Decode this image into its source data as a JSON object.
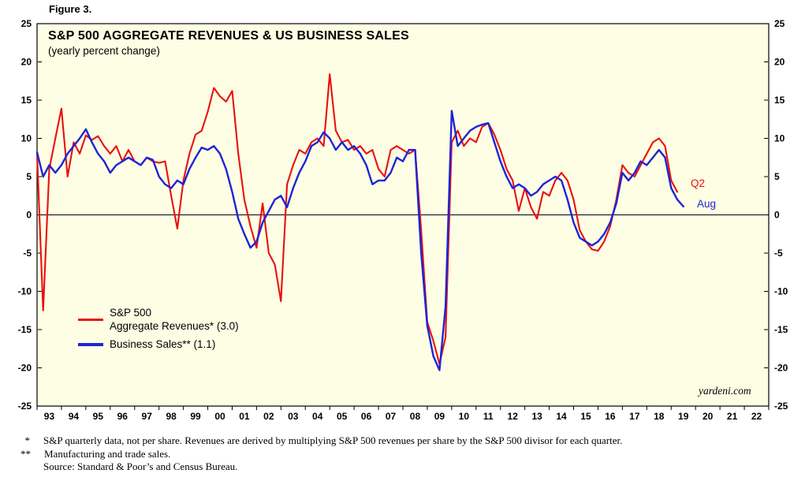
{
  "figure_label": "Figure 3.",
  "chart_data": {
    "type": "line",
    "title": "S&P 500 AGGREGATE REVENUES & US BUSINESS SALES",
    "subtitle": "(yearly percent change)",
    "ylabel": "yearly percent change",
    "xlim": [
      1993,
      2023
    ],
    "ylim": [
      -25,
      25
    ],
    "yticks": [
      -25,
      -20,
      -15,
      -10,
      -5,
      0,
      5,
      10,
      15,
      20,
      25
    ],
    "x_tick_start_year": 1993,
    "x_tick_labels": [
      "93",
      "94",
      "95",
      "96",
      "97",
      "98",
      "99",
      "00",
      "01",
      "02",
      "03",
      "04",
      "05",
      "06",
      "07",
      "08",
      "09",
      "10",
      "11",
      "12",
      "13",
      "14",
      "15",
      "16",
      "17",
      "18",
      "19",
      "20",
      "21",
      "22"
    ],
    "grid": false,
    "plot_background": "#fefee4",
    "legend_position": "inside-lower-left",
    "zero_line": true,
    "series": [
      {
        "name": "S&P 500 Aggregate Revenues* (3.0)",
        "color": "#e81010",
        "stroke_width": 2.1,
        "x_start": 1993.0,
        "x_step": 0.25,
        "values": [
          8.0,
          -12.5,
          6.0,
          10.0,
          13.9,
          5.0,
          9.5,
          8.0,
          10.4,
          9.8,
          10.3,
          9.0,
          8.0,
          9.0,
          7.0,
          8.5,
          7.0,
          6.5,
          7.5,
          7.0,
          6.8,
          7.0,
          2.5,
          -1.8,
          4.5,
          8.0,
          10.5,
          11.0,
          13.5,
          16.6,
          15.5,
          14.8,
          16.2,
          8.0,
          2.0,
          -1.5,
          -4.3,
          1.5,
          -5.0,
          -6.5,
          -11.3,
          4.0,
          6.5,
          8.5,
          8.0,
          9.5,
          10.0,
          9.0,
          18.4,
          11.0,
          9.5,
          9.8,
          8.5,
          9.0,
          8.0,
          8.5,
          6.0,
          5.0,
          8.5,
          9.0,
          8.5,
          8.0,
          8.5,
          -2.0,
          -14.0,
          -16.5,
          -19.5,
          -16.0,
          9.5,
          11.0,
          9.0,
          10.0,
          9.5,
          11.5,
          12.0,
          10.5,
          8.5,
          6.0,
          4.5,
          0.5,
          3.5,
          1.0,
          -0.5,
          3.0,
          2.5,
          4.5,
          5.5,
          4.5,
          2.0,
          -2.0,
          -3.5,
          -4.5,
          -4.7,
          -3.5,
          -1.5,
          2.0,
          6.5,
          5.5,
          5.0,
          6.5,
          8.0,
          9.5,
          10.0,
          9.0,
          4.5,
          3.0
        ]
      },
      {
        "name": "Business Sales** (1.1)",
        "color": "#1c24d8",
        "stroke_width": 2.4,
        "x_start": 1993.0,
        "x_step": 0.25,
        "values": [
          8.2,
          5.0,
          6.5,
          5.5,
          6.5,
          8.0,
          9.0,
          10.0,
          11.2,
          9.5,
          8.0,
          7.0,
          5.5,
          6.5,
          7.0,
          7.5,
          7.0,
          6.5,
          7.5,
          7.2,
          5.0,
          4.0,
          3.5,
          4.5,
          4.0,
          6.0,
          7.5,
          8.8,
          8.5,
          9.0,
          8.0,
          6.0,
          3.0,
          -0.5,
          -2.5,
          -4.3,
          -3.5,
          -1.0,
          0.5,
          2.0,
          2.5,
          1.0,
          3.5,
          5.5,
          7.0,
          9.0,
          9.5,
          10.8,
          10.0,
          8.5,
          9.5,
          8.5,
          9.0,
          8.0,
          6.5,
          4.0,
          4.5,
          4.5,
          5.5,
          7.5,
          7.0,
          8.5,
          8.5,
          -5.0,
          -14.5,
          -18.5,
          -20.3,
          -12.0,
          13.6,
          9.0,
          10.0,
          11.0,
          11.5,
          11.8,
          12.0,
          9.5,
          7.0,
          5.0,
          3.5,
          4.0,
          3.5,
          2.5,
          3.0,
          4.0,
          4.5,
          5.0,
          4.5,
          2.0,
          -1.0,
          -3.0,
          -3.5,
          -4.0,
          -3.5,
          -2.5,
          -1.0,
          1.5,
          5.5,
          4.5,
          5.5,
          7.0,
          6.5,
          7.5,
          8.5,
          7.5,
          3.5,
          2.0,
          1.1
        ]
      }
    ],
    "end_labels": [
      {
        "text": "Q2",
        "series": "S&P 500 Aggregate Revenues",
        "color": "#e81010"
      },
      {
        "text": "Aug",
        "series": "Business Sales",
        "color": "#1c24d8"
      }
    ]
  },
  "legend": {
    "red_line1": "S&P 500",
    "red_line2": "Aggregate Revenues* (3.0)",
    "blue_line1": "Business Sales** (1.1)"
  },
  "branding": "yardeni.com",
  "footnotes": [
    {
      "marker": "*",
      "text": "S&P quarterly data, not per share. Revenues are derived by multiplying S&P 500 revenues per share by the S&P 500 divisor for each quarter."
    },
    {
      "marker": "**",
      "text": "Manufacturing and trade sales."
    },
    {
      "marker": "",
      "text": "Source: Standard & Poor’s and Census Bureau."
    }
  ]
}
